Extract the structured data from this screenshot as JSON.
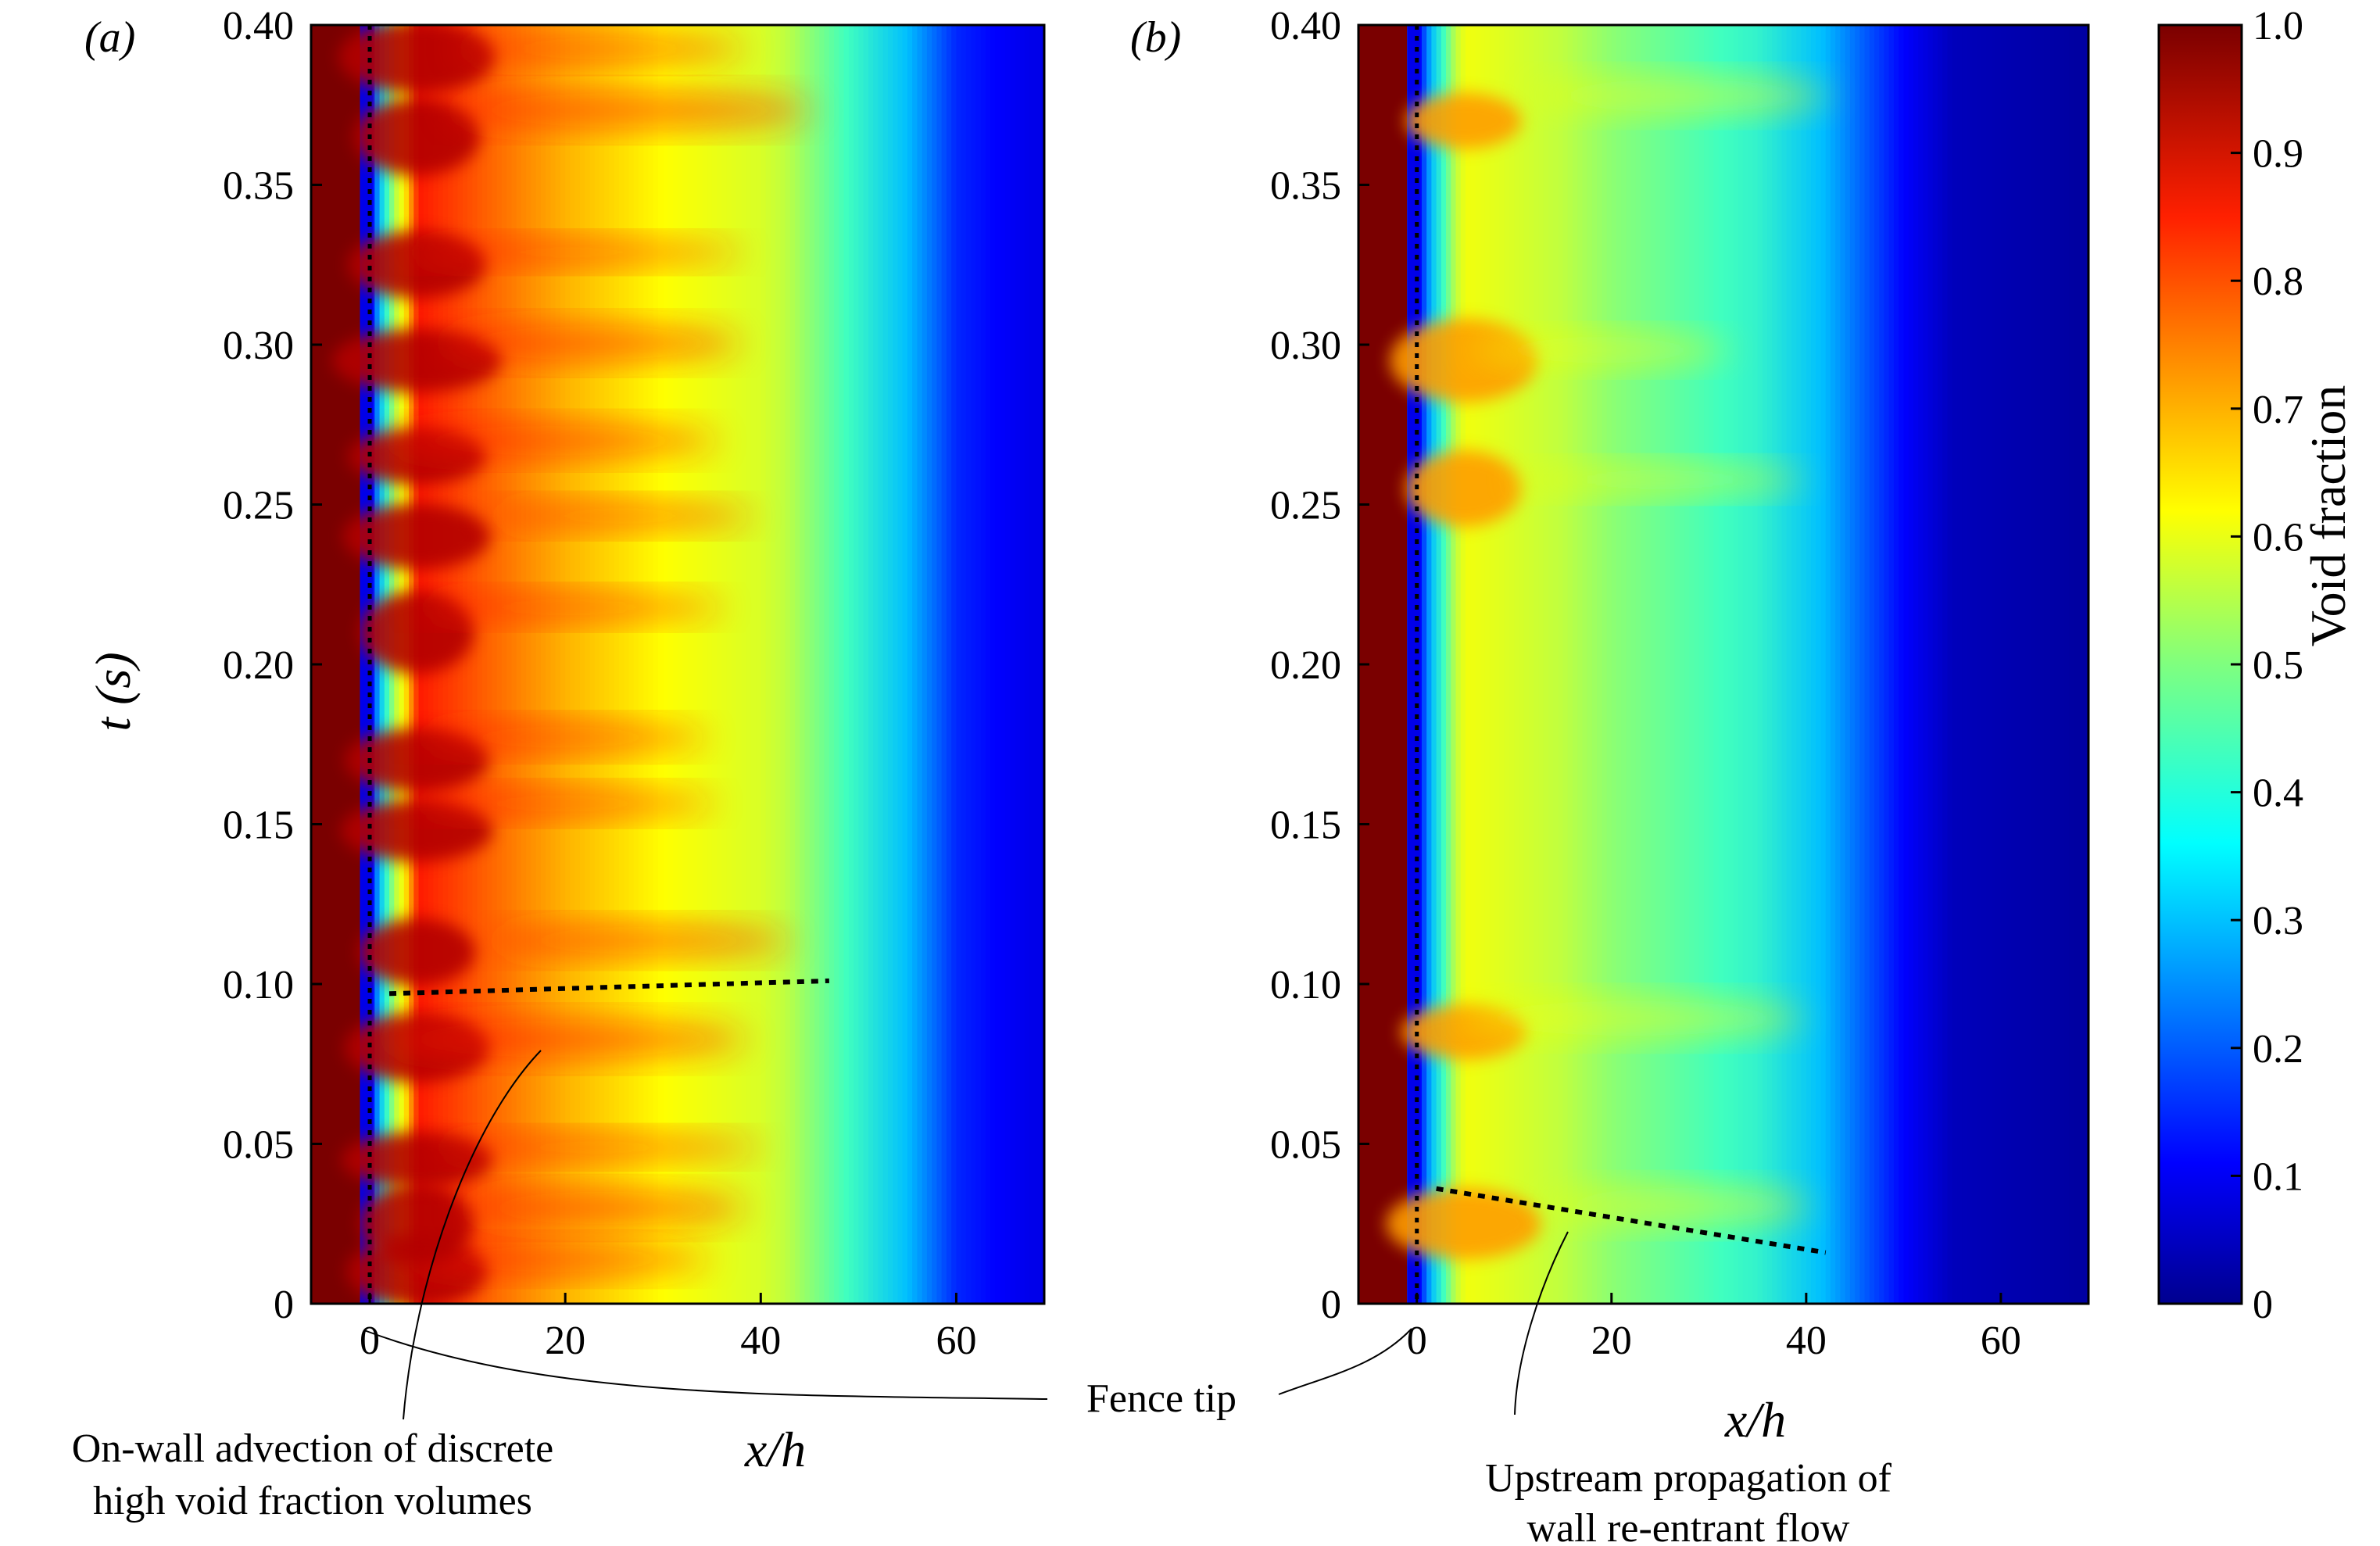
{
  "figure": {
    "panel_labels": [
      "(a)",
      "(b)"
    ],
    "ylabel": "t (s)",
    "xlabel": "x/h",
    "colorbar_label": "Void fraction",
    "colorbar_ticks": [
      "1.0",
      "0.9",
      "0.8",
      "0.7",
      "0.6",
      "0.5",
      "0.4",
      "0.3",
      "0.2",
      "0.1",
      "0"
    ],
    "y_ticks": [
      "0.40",
      "0.35",
      "0.30",
      "0.25",
      "0.20",
      "0.15",
      "0.10",
      "0.05",
      "0"
    ],
    "x_ticks": [
      "0",
      "20",
      "40",
      "60"
    ],
    "annotations": {
      "fence_tip": "Fence tip",
      "advection_line1": "On-wall advection of discrete",
      "advection_line2": "high void fraction volumes",
      "upstream_line1": "Upstream propagation of",
      "upstream_line2": "wall re-entrant flow"
    }
  },
  "chart_data": [
    {
      "type": "heatmap",
      "panel": "(a)",
      "xlabel": "x/h",
      "ylabel": "t (s)",
      "xlim": [
        -6,
        69
      ],
      "ylim": [
        0,
        0.4
      ],
      "colorbar": {
        "label": "Void fraction",
        "range": [
          0,
          1.0
        ]
      },
      "fence_tip_x": 0,
      "annotation_line": {
        "x": [
          2,
          47
        ],
        "t": [
          0.097,
          0.101
        ],
        "label": "On-wall advection of discrete high void fraction volumes"
      },
      "void_fraction_profile": {
        "x": [
          -5,
          0,
          5,
          20,
          40,
          50,
          60,
          68
        ],
        "value": [
          1.0,
          0.1,
          0.85,
          0.7,
          0.55,
          0.35,
          0.15,
          0.1
        ]
      },
      "high_void_shedding_t": [
        0.01,
        0.025,
        0.045,
        0.08,
        0.11,
        0.148,
        0.17,
        0.21,
        0.24,
        0.265,
        0.295,
        0.325,
        0.365,
        0.39
      ]
    },
    {
      "type": "heatmap",
      "panel": "(b)",
      "xlabel": "x/h",
      "ylabel": "t (s)",
      "xlim": [
        -6,
        69
      ],
      "ylim": [
        0,
        0.4
      ],
      "colorbar": {
        "label": "Void fraction",
        "range": [
          0,
          1.0
        ]
      },
      "fence_tip_x": 0,
      "annotation_line": {
        "x": [
          2,
          42
        ],
        "t": [
          0.036,
          0.016
        ],
        "label": "Upstream propagation of wall re-entrant flow"
      },
      "void_fraction_profile": {
        "x": [
          -5,
          0,
          5,
          20,
          35,
          45,
          55,
          68
        ],
        "value": [
          1.0,
          0.1,
          0.6,
          0.45,
          0.35,
          0.2,
          0.05,
          0.02
        ]
      },
      "high_void_shedding_t": [
        0.025,
        0.085,
        0.255,
        0.295,
        0.37
      ]
    }
  ],
  "colors": {
    "fence": "#7a0000",
    "colormap": [
      "#00008f",
      "#0000ff",
      "#00bfff",
      "#40ffbf",
      "#bfff40",
      "#ffff00",
      "#ff8000",
      "#ff0000",
      "#800000"
    ]
  }
}
